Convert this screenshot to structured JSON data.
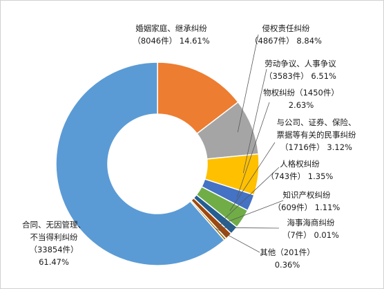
{
  "chart_data": {
    "type": "pie",
    "donut": true,
    "slices": [
      {
        "label_lines": [
          "婚姻家庭、继承纠纷",
          "（8046件） 14.61%"
        ],
        "count": 8046,
        "percent": 14.61,
        "color": "#ED7D31"
      },
      {
        "label_lines": [
          "侵权责任纠纷",
          "（4867件） 8.84%"
        ],
        "count": 4867,
        "percent": 8.84,
        "color": "#A5A5A5"
      },
      {
        "label_lines": [
          "劳动争议、人事争议",
          "（3583件） 6.51%"
        ],
        "count": 3583,
        "percent": 6.51,
        "color": "#FFC000"
      },
      {
        "label_lines": [
          "物权纠纷（1450件）",
          "2.63%"
        ],
        "count": 1450,
        "percent": 2.63,
        "color": "#4472C4"
      },
      {
        "label_lines": [
          "与公司、证券、保险、",
          "票据等有关的民事纠纷",
          "（1716件） 3.12%"
        ],
        "count": 1716,
        "percent": 3.12,
        "color": "#70AD47"
      },
      {
        "label_lines": [
          "人格权纠纷",
          "（743件） 1.35%"
        ],
        "count": 743,
        "percent": 1.35,
        "color": "#255E91"
      },
      {
        "label_lines": [
          "知识产权纠纷",
          "（609件） 1.11%"
        ],
        "count": 609,
        "percent": 1.11,
        "color": "#9E480E"
      },
      {
        "label_lines": [
          "海事海商纠纷",
          "（7件） 0.01%"
        ],
        "count": 7,
        "percent": 0.01,
        "color": "#636363"
      },
      {
        "label_lines": [
          "其他（201件）",
          "0.36%"
        ],
        "count": 201,
        "percent": 0.36,
        "color": "#997300"
      },
      {
        "label_lines": [
          "合同、无因管理、",
          "不当得利纠纷",
          "（33854件）",
          "61.47%"
        ],
        "count": 33854,
        "percent": 61.47,
        "color": "#5B9BD5"
      }
    ]
  }
}
